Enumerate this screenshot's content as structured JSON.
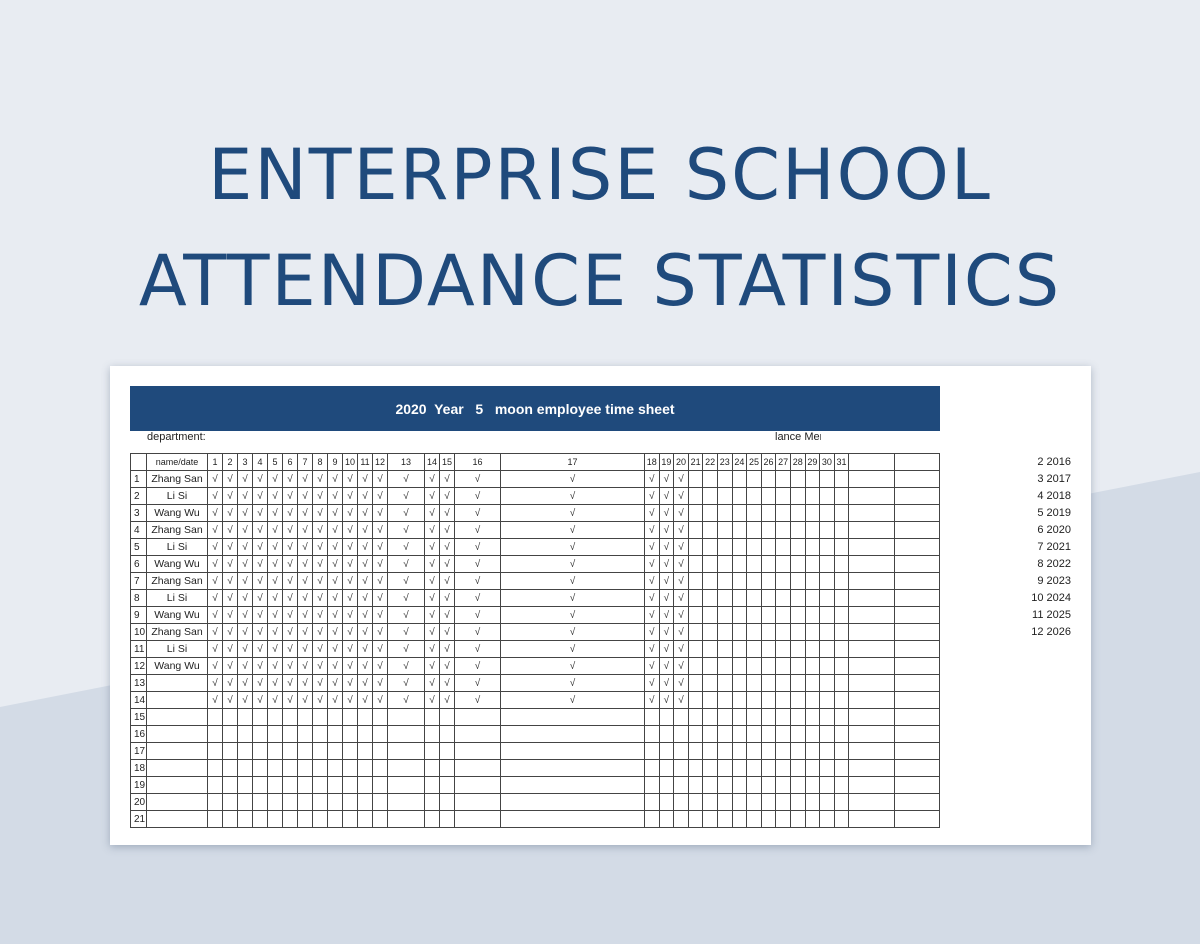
{
  "page": {
    "title_lines": [
      "ENTERPRISE SCHOOL",
      "ATTENDANCE STATISTICS"
    ],
    "colors": {
      "title": "#1f4a7c",
      "banner": "#1f4a7c",
      "bg_upper": "#e8ecf2",
      "bg_lower": "#d3dbe6"
    }
  },
  "sheet": {
    "banner": "2020  Year   5   moon employee time sheet",
    "department_label": "department:",
    "manager_label": "lance Mer",
    "header": {
      "name_col": "name/date",
      "days": [
        "1",
        "2",
        "3",
        "4",
        "5",
        "6",
        "7",
        "8",
        "9",
        "10",
        "11",
        "12",
        "13",
        "14",
        "15",
        "16",
        "17",
        "18",
        "19",
        "20",
        "21",
        "22",
        "23",
        "24",
        "25",
        "26",
        "27",
        "28",
        "29",
        "30",
        "31"
      ]
    },
    "check_symbol": "√",
    "checked_days_count": 20,
    "rows": [
      {
        "n": "1",
        "name": "Zhang San",
        "checked": true
      },
      {
        "n": "2",
        "name": "Li Si",
        "checked": true
      },
      {
        "n": "3",
        "name": "Wang Wu",
        "checked": true
      },
      {
        "n": "4",
        "name": "Zhang San",
        "checked": true
      },
      {
        "n": "5",
        "name": "Li Si",
        "checked": true
      },
      {
        "n": "6",
        "name": "Wang Wu",
        "checked": true
      },
      {
        "n": "7",
        "name": "Zhang San",
        "checked": true
      },
      {
        "n": "8",
        "name": "Li Si",
        "checked": true
      },
      {
        "n": "9",
        "name": "Wang Wu",
        "checked": true
      },
      {
        "n": "10",
        "name": "Zhang San",
        "checked": true
      },
      {
        "n": "11",
        "name": "Li Si",
        "checked": true
      },
      {
        "n": "12",
        "name": "Wang Wu",
        "checked": true
      },
      {
        "n": "13",
        "name": "",
        "checked": true
      },
      {
        "n": "14",
        "name": "",
        "checked": true
      },
      {
        "n": "15",
        "name": "",
        "checked": false
      },
      {
        "n": "16",
        "name": "",
        "checked": false
      },
      {
        "n": "17",
        "name": "",
        "checked": false
      },
      {
        "n": "18",
        "name": "",
        "checked": false
      },
      {
        "n": "19",
        "name": "",
        "checked": false
      },
      {
        "n": "20",
        "name": "",
        "checked": false
      },
      {
        "n": "21",
        "name": "",
        "checked": false
      }
    ],
    "side_list": [
      "2 2016",
      "3 2017",
      "4 2018",
      "5 2019",
      "6 2020",
      "7 2021",
      "8 2022",
      "9 2023",
      "10 2024",
      "11 2025",
      "12 2026"
    ]
  }
}
